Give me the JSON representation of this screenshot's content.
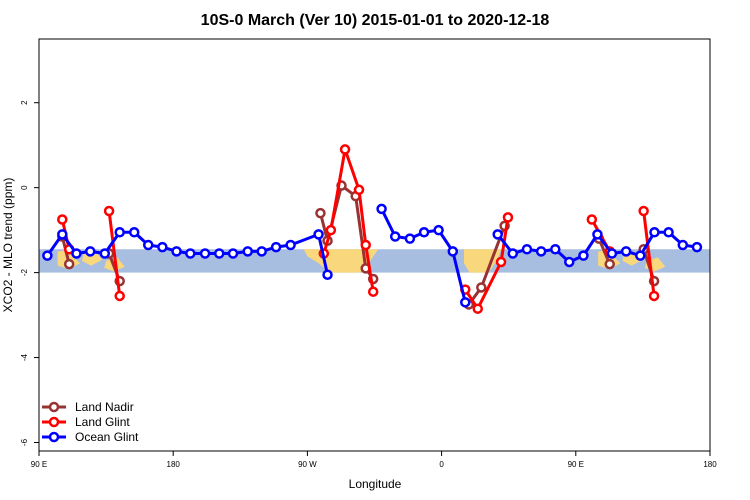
{
  "chart_data": {
    "type": "line",
    "title": "10S-0 March (Ver 10)   2015-01-01 to 2020-12-18",
    "xlabel": "Longitude",
    "ylabel": "XCO2 - MLO trend (ppm)",
    "xlim": [
      90,
      450
    ],
    "ylim": [
      -6.2,
      3.5
    ],
    "x_ticks": [
      {
        "value": 90,
        "label": "90 E"
      },
      {
        "value": 162,
        "label": "180"
      },
      {
        "value": 234,
        "label": "90 W"
      },
      {
        "value": 306,
        "label": "0"
      },
      {
        "value": 378,
        "label": "90 E"
      },
      {
        "value": 450,
        "label": "180"
      }
    ],
    "y_ticks": [
      {
        "value": -6,
        "label": "-6"
      },
      {
        "value": -4,
        "label": "-4"
      },
      {
        "value": -2,
        "label": "-2"
      },
      {
        "value": 0,
        "label": "0"
      },
      {
        "value": 2,
        "label": "2"
      }
    ],
    "background_band": {
      "ymin": -2.0,
      "ymax": -1.45,
      "color": "#a8bee0",
      "land_color": "#f9d77c"
    },
    "legend_position": "bottom-left",
    "series": [
      {
        "name": "Land Nadir",
        "color": "#993333",
        "segments": [
          [
            [
              102.5,
              -1.15
            ],
            [
              106.2,
              -1.8
            ]
          ],
          [
            [
              127.6,
              -1.55
            ],
            [
              133.3,
              -2.2
            ]
          ],
          [
            [
              241.0,
              -0.6
            ],
            [
              244.8,
              -1.25
            ],
            [
              252.3,
              0.05
            ],
            [
              259.9,
              -0.2
            ],
            [
              265.3,
              -1.9
            ],
            [
              269.3,
              -2.15
            ]
          ],
          [
            [
              320.6,
              -2.75
            ],
            [
              327.3,
              -2.35
            ],
            [
              339.8,
              -0.9
            ]
          ],
          [
            [
              390.4,
              -1.2
            ],
            [
              396.2,
              -1.8
            ]
          ],
          [
            [
              414.4,
              -1.45
            ],
            [
              420.0,
              -2.2
            ]
          ]
        ]
      },
      {
        "name": "Land Glint",
        "color": "#ff0000",
        "segments": [
          [
            [
              102.5,
              -0.75
            ],
            [
              106.2,
              -1.45
            ]
          ],
          [
            [
              127.6,
              -0.55
            ],
            [
              133.3,
              -2.55
            ]
          ],
          [
            [
              242.8,
              -1.55
            ],
            [
              246.6,
              -1.0
            ],
            [
              254.2,
              0.9
            ],
            [
              261.7,
              -0.05
            ],
            [
              265.3,
              -1.35
            ],
            [
              269.3,
              -2.45
            ]
          ],
          [
            [
              318.7,
              -2.4
            ],
            [
              325.4,
              -2.85
            ],
            [
              337.9,
              -1.75
            ],
            [
              341.6,
              -0.7
            ]
          ],
          [
            [
              386.6,
              -0.75
            ],
            [
              396.2,
              -1.5
            ]
          ],
          [
            [
              414.4,
              -0.55
            ],
            [
              420.0,
              -2.55
            ]
          ]
        ]
      },
      {
        "name": "Ocean Glint",
        "color": "#0000ff",
        "segments": [
          [
            [
              94.5,
              -1.6
            ],
            [
              102.5,
              -1.1
            ],
            [
              110.1,
              -1.55
            ],
            [
              117.5,
              -1.5
            ],
            [
              125.3,
              -1.55
            ],
            [
              133.3,
              -1.05
            ],
            [
              141.1,
              -1.05
            ],
            [
              148.6,
              -1.35
            ],
            [
              156.2,
              -1.4
            ],
            [
              163.8,
              -1.5
            ],
            [
              171.2,
              -1.55
            ],
            [
              179.1,
              -1.55
            ],
            [
              186.7,
              -1.55
            ],
            [
              194.1,
              -1.55
            ],
            [
              202.0,
              -1.5
            ],
            [
              209.5,
              -1.5
            ],
            [
              217.2,
              -1.4
            ],
            [
              225.0,
              -1.35
            ],
            [
              240.0,
              -1.1
            ],
            [
              244.8,
              -2.05
            ]
          ],
          [
            [
              273.8,
              -0.5
            ],
            [
              281.1,
              -1.15
            ],
            [
              289.0,
              -1.2
            ],
            [
              296.6,
              -1.05
            ],
            [
              304.4,
              -1.0
            ],
            [
              312.0,
              -1.5
            ],
            [
              318.7,
              -2.7
            ]
          ],
          [
            [
              336.1,
              -1.1
            ],
            [
              344.2,
              -1.55
            ],
            [
              351.8,
              -1.45
            ],
            [
              359.4,
              -1.5
            ],
            [
              367.0,
              -1.45
            ],
            [
              374.5,
              -1.75
            ],
            [
              382.1,
              -1.6
            ],
            [
              389.6,
              -1.1
            ],
            [
              397.4,
              -1.55
            ],
            [
              405.0,
              -1.5
            ],
            [
              412.6,
              -1.6
            ],
            [
              420.2,
              -1.05
            ],
            [
              427.8,
              -1.05
            ],
            [
              435.4,
              -1.35
            ],
            [
              443.0,
              -1.4
            ]
          ]
        ]
      }
    ]
  }
}
